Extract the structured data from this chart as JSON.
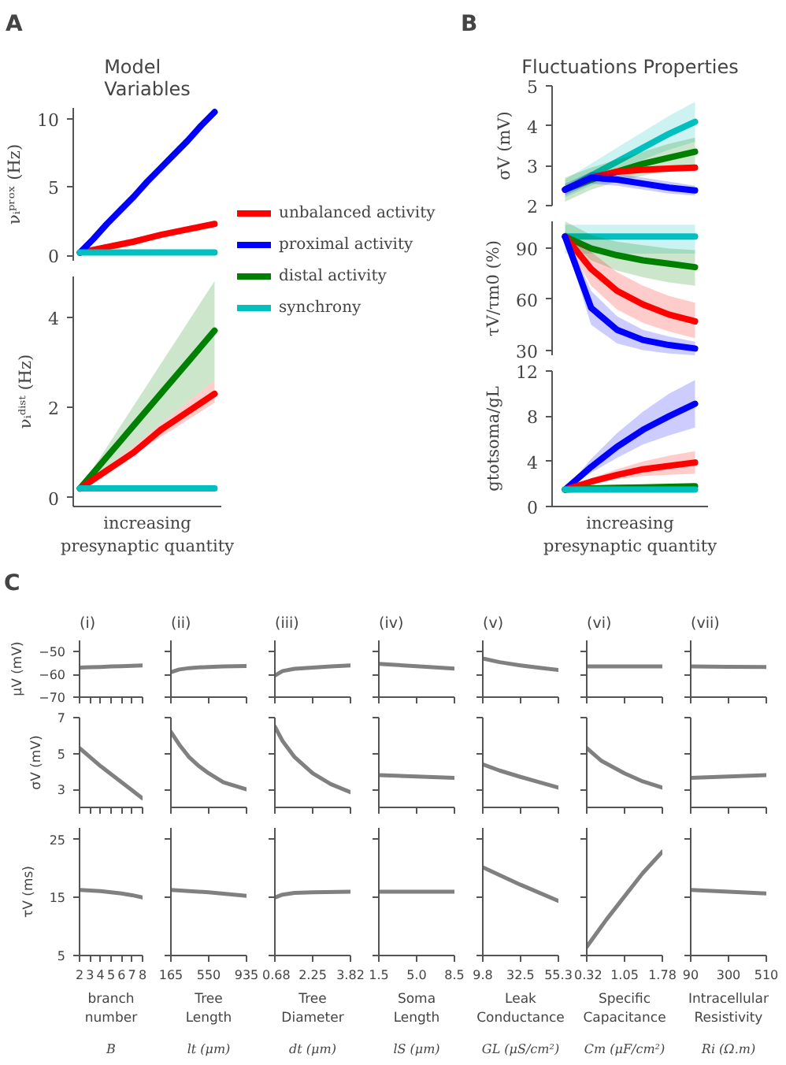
{
  "chart_data": [
    {
      "type": "line",
      "title": "Model Variables",
      "annotations": [
        "A"
      ],
      "ylabel": "νᵢᵖʳᵒˣ (Hz)",
      "categories": [
        null,
        null,
        null,
        null,
        null,
        null,
        null,
        null,
        null,
        null,
        null
      ],
      "ylim": [
        -0.4,
        10.8
      ],
      "yticks": [
        0,
        5,
        10
      ],
      "tick_labels": "y",
      "legend": "right",
      "series": [
        {
          "name": "unbalanced activity",
          "color": "#ff0000",
          "values": [
            0.2,
            0.4,
            0.6,
            0.8,
            1.0,
            1.25,
            1.5,
            1.7,
            1.9,
            2.1,
            2.3
          ]
        },
        {
          "name": "proximal activity",
          "color": "#0000ff",
          "values": [
            0.2,
            1.2,
            2.3,
            3.3,
            4.3,
            5.4,
            6.4,
            7.4,
            8.4,
            9.5,
            10.5
          ]
        },
        {
          "name": "distal activity",
          "color": "#008000",
          "values": [
            null,
            null,
            null,
            null,
            null,
            null,
            null,
            null,
            null,
            null,
            null
          ]
        },
        {
          "name": "synchrony",
          "color": "#00bfbf",
          "values": [
            0.2,
            0.2,
            0.2,
            0.2,
            0.2,
            0.2,
            0.2,
            0.2,
            0.2,
            0.2,
            0.2
          ]
        }
      ]
    },
    {
      "type": "line",
      "ylabel": "νᵢᵈⁱˢᵗ (Hz)",
      "xlabel": "increasing presynaptic quantity",
      "categories": [
        null,
        null,
        null,
        null,
        null,
        null,
        null,
        null,
        null,
        null,
        null
      ],
      "ylim": [
        -0.2,
        4.9
      ],
      "yticks": [
        0,
        2,
        4
      ],
      "tick_labels": "y",
      "series": [
        {
          "color": "#008000",
          "values": [
            0.2,
            0.55,
            0.9,
            1.25,
            1.6,
            1.95,
            2.3,
            2.65,
            3.0,
            3.35,
            3.7
          ],
          "lower": [
            0.2,
            0.44,
            0.68,
            0.92,
            1.16,
            1.4,
            1.64,
            1.88,
            2.12,
            2.36,
            2.6
          ],
          "upper": [
            0.2,
            0.66,
            1.12,
            1.58,
            2.04,
            2.5,
            2.96,
            3.42,
            3.88,
            4.34,
            4.8
          ]
        },
        {
          "color": "#ff0000",
          "values": [
            0.2,
            0.4,
            0.6,
            0.8,
            1.0,
            1.25,
            1.5,
            1.7,
            1.9,
            2.1,
            2.3
          ],
          "lower": [
            0.2,
            0.39,
            0.58,
            0.77,
            0.96,
            1.15,
            1.34,
            1.53,
            1.72,
            1.91,
            2.1
          ],
          "upper": [
            0.2,
            0.44,
            0.68,
            0.92,
            1.16,
            1.4,
            1.64,
            1.88,
            2.12,
            2.36,
            2.6
          ]
        },
        {
          "color": "#00bfbf",
          "values": [
            0.2,
            0.2,
            0.2,
            0.2,
            0.2,
            0.2,
            0.2,
            0.2,
            0.2,
            0.2,
            0.2
          ]
        }
      ]
    },
    {
      "type": "line",
      "title": "Fluctuations Properties",
      "annotations": [
        "B"
      ],
      "ylabel": "σV (mV)",
      "categories": [
        null,
        null,
        null,
        null,
        null,
        null
      ],
      "ylim": [
        2,
        5
      ],
      "yticks": [
        2,
        3,
        4,
        5
      ],
      "tick_labels": "y",
      "series": [
        {
          "color": "#00bfbf",
          "values": [
            2.4,
            2.75,
            3.1,
            3.45,
            3.8,
            4.1
          ],
          "lower": [
            2.2,
            2.5,
            2.85,
            3.15,
            3.4,
            3.6
          ],
          "upper": [
            2.65,
            3.05,
            3.45,
            3.85,
            4.25,
            4.6
          ]
        },
        {
          "color": "#008000",
          "values": [
            2.4,
            2.65,
            2.85,
            3.05,
            3.2,
            3.35
          ],
          "lower": [
            2.1,
            2.4,
            2.6,
            2.75,
            2.9,
            3.0
          ],
          "upper": [
            2.7,
            2.95,
            3.15,
            3.35,
            3.55,
            3.7
          ]
        },
        {
          "color": "#ff0000",
          "values": [
            2.4,
            2.7,
            2.85,
            2.9,
            2.93,
            2.95
          ],
          "lower": [
            2.3,
            2.62,
            2.77,
            2.82,
            2.85,
            2.87
          ],
          "upper": [
            2.5,
            2.78,
            2.93,
            2.98,
            3.01,
            3.03
          ]
        },
        {
          "color": "#0000ff",
          "values": [
            2.4,
            2.7,
            2.65,
            2.55,
            2.45,
            2.38
          ],
          "lower": [
            2.25,
            2.55,
            2.5,
            2.4,
            2.3,
            2.25
          ],
          "upper": [
            2.55,
            2.85,
            2.8,
            2.7,
            2.6,
            2.5
          ]
        }
      ]
    },
    {
      "type": "line",
      "ylabel": "τV/τm0 (%)",
      "categories": [
        null,
        null,
        null,
        null,
        null,
        null
      ],
      "ylim": [
        27,
        106
      ],
      "yticks": [
        30,
        60,
        90
      ],
      "tick_labels": "y",
      "series": [
        {
          "color": "#00bfbf",
          "values": [
            97,
            97,
            97,
            97,
            97,
            97
          ],
          "lower": [
            87,
            87,
            87,
            87,
            87,
            87
          ],
          "upper": [
            104,
            104,
            104,
            104,
            104,
            104
          ]
        },
        {
          "color": "#008000",
          "values": [
            97,
            90,
            86,
            83,
            81,
            79
          ],
          "lower": [
            97,
            83,
            77,
            73,
            70,
            68
          ],
          "upper": [
            106,
            98,
            94,
            92,
            90,
            89
          ]
        },
        {
          "color": "#ff0000",
          "values": [
            97,
            78,
            65,
            57,
            51,
            47
          ],
          "lower": [
            95,
            68,
            54,
            46,
            41,
            37
          ],
          "upper": [
            100,
            88,
            76,
            68,
            62,
            58
          ]
        },
        {
          "color": "#0000ff",
          "values": [
            97,
            55,
            42,
            36,
            33,
            31
          ],
          "lower": [
            95,
            45,
            34,
            30,
            28,
            27
          ],
          "upper": [
            100,
            65,
            50,
            42,
            38,
            35
          ]
        }
      ]
    },
    {
      "type": "line",
      "ylabel": "gtotsoma/gL",
      "xlabel": "increasing presynaptic quantity",
      "categories": [
        null,
        null,
        null,
        null,
        null,
        null
      ],
      "ylim": [
        0,
        12
      ],
      "yticks": [
        0,
        4,
        8,
        12
      ],
      "tick_labels": "y",
      "series": [
        {
          "color": "#0000ff",
          "values": [
            1.5,
            3.5,
            5.3,
            6.8,
            8.0,
            9.1
          ],
          "lower": [
            1.5,
            3.0,
            4.3,
            5.5,
            6.3,
            7.0
          ],
          "upper": [
            1.5,
            4.2,
            6.5,
            8.4,
            10.0,
            11.2
          ]
        },
        {
          "color": "#ff0000",
          "values": [
            1.5,
            2.2,
            2.8,
            3.3,
            3.6,
            3.9
          ],
          "lower": [
            1.5,
            2.0,
            2.4,
            2.7,
            2.8,
            2.9
          ],
          "upper": [
            1.5,
            2.5,
            3.3,
            4.0,
            4.5,
            4.9
          ]
        },
        {
          "color": "#008000",
          "values": [
            1.5,
            1.6,
            1.65,
            1.7,
            1.75,
            1.8
          ]
        },
        {
          "color": "#00bfbf",
          "values": [
            1.5,
            1.5,
            1.5,
            1.5,
            1.5,
            1.5
          ]
        }
      ]
    },
    {
      "type": "line",
      "title": "(i)",
      "annotations": [
        "C"
      ],
      "ylabel": "μV (mV)",
      "x": [
        2,
        3,
        4,
        5,
        6,
        7,
        8
      ],
      "xlim": [
        2,
        8
      ],
      "xticks": [
        2,
        3,
        4,
        5,
        6,
        7,
        8
      ],
      "ylim": [
        -70,
        -45
      ],
      "yticks": [
        -70,
        -60,
        -50
      ],
      "tick_labels": "y",
      "series": [
        {
          "color": "#808080",
          "values": [
            -57,
            -56.8,
            -56.7,
            -56.5,
            -56.4,
            -56.2,
            -56
          ]
        }
      ]
    },
    {
      "type": "line",
      "title": "(ii)",
      "x": [
        165,
        250,
        350,
        450,
        550,
        700,
        935
      ],
      "xlim": [
        165,
        935
      ],
      "xticks": [
        165,
        550,
        935
      ],
      "ylim": [
        -70,
        -45
      ],
      "yticks": [
        -70,
        -60,
        -50
      ],
      "tick_labels": false,
      "series": [
        {
          "color": "#808080",
          "values": [
            -59,
            -57.8,
            -57.2,
            -56.9,
            -56.7,
            -56.5,
            -56.3
          ]
        }
      ]
    },
    {
      "type": "line",
      "title": "(iii)",
      "x": [
        0.68,
        1.0,
        1.5,
        2.25,
        3.0,
        3.82
      ],
      "xlim": [
        0.68,
        3.82
      ],
      "xticks": [
        0.68,
        2.25,
        3.82
      ],
      "ylim": [
        -70,
        -45
      ],
      "yticks": [
        -70,
        -60,
        -50
      ],
      "tick_labels": false,
      "series": [
        {
          "color": "#808080",
          "values": [
            -60.5,
            -58.5,
            -57.5,
            -57,
            -56.5,
            -56
          ]
        }
      ]
    },
    {
      "type": "line",
      "title": "(iv)",
      "x": [
        1.5,
        5,
        8.5
      ],
      "xlim": [
        1.5,
        8.5
      ],
      "xticks": [
        1.5,
        5,
        8.5
      ],
      "ylim": [
        -70,
        -45
      ],
      "yticks": [
        -70,
        -60,
        -50
      ],
      "tick_labels": false,
      "series": [
        {
          "color": "#808080",
          "values": [
            -55.3,
            -56.4,
            -57.4
          ]
        }
      ]
    },
    {
      "type": "line",
      "title": "(v)",
      "x": [
        9.8,
        20,
        32.5,
        44,
        55.3
      ],
      "xlim": [
        9.8,
        55.3
      ],
      "xticks": [
        9.8,
        32.5,
        55.3
      ],
      "ylim": [
        -70,
        -45
      ],
      "yticks": [
        -70,
        -60,
        -50
      ],
      "tick_labels": false,
      "series": [
        {
          "color": "#808080",
          "values": [
            -53,
            -54.6,
            -56,
            -57.1,
            -58
          ]
        }
      ]
    },
    {
      "type": "line",
      "title": "(vi)",
      "x": [
        0.32,
        1.05,
        1.78
      ],
      "xlim": [
        0.32,
        1.78
      ],
      "xticks": [
        0.32,
        1.05,
        1.78
      ],
      "ylim": [
        -70,
        -45
      ],
      "yticks": [
        -70,
        -60,
        -50
      ],
      "tick_labels": false,
      "series": [
        {
          "color": "#808080",
          "values": [
            -56.5,
            -56.5,
            -56.5
          ]
        }
      ]
    },
    {
      "type": "line",
      "title": "(vii)",
      "x": [
        90,
        300,
        510
      ],
      "xlim": [
        90,
        510
      ],
      "xticks": [
        90,
        300,
        510
      ],
      "ylim": [
        -70,
        -45
      ],
      "yticks": [
        -70,
        -60,
        -50
      ],
      "tick_labels": false,
      "series": [
        {
          "color": "#808080",
          "values": [
            -56.5,
            -56.6,
            -56.7
          ]
        }
      ]
    },
    {
      "type": "line",
      "ylabel": "σV (mV)",
      "x": [
        2,
        3,
        4,
        5,
        6,
        7,
        8
      ],
      "xlim": [
        2,
        8
      ],
      "xticks": [
        2,
        3,
        4,
        5,
        6,
        7,
        8
      ],
      "ylim": [
        2,
        7
      ],
      "yticks": [
        3,
        5,
        7
      ],
      "tick_labels": "y",
      "series": [
        {
          "color": "#808080",
          "values": [
            5.3,
            4.8,
            4.3,
            3.85,
            3.4,
            2.95,
            2.5
          ]
        }
      ]
    },
    {
      "type": "line",
      "x": [
        165,
        250,
        350,
        450,
        550,
        700,
        935
      ],
      "xlim": [
        165,
        935
      ],
      "xticks": [
        165,
        550,
        935
      ],
      "ylim": [
        2,
        7
      ],
      "yticks": [
        3,
        5,
        7
      ],
      "tick_labels": false,
      "series": [
        {
          "color": "#808080",
          "values": [
            6.2,
            5.5,
            4.8,
            4.3,
            3.9,
            3.4,
            3.0
          ]
        }
      ]
    },
    {
      "type": "line",
      "x": [
        0.68,
        1.0,
        1.5,
        2.25,
        3.0,
        3.82
      ],
      "xlim": [
        0.68,
        3.82
      ],
      "xticks": [
        0.68,
        2.25,
        3.82
      ],
      "ylim": [
        2,
        7
      ],
      "yticks": [
        3,
        5,
        7
      ],
      "tick_labels": false,
      "series": [
        {
          "color": "#808080",
          "values": [
            6.5,
            5.7,
            4.8,
            3.9,
            3.3,
            2.85
          ]
        }
      ]
    },
    {
      "type": "line",
      "x": [
        1.5,
        5,
        8.5
      ],
      "xlim": [
        1.5,
        8.5
      ],
      "xticks": [
        1.5,
        5,
        8.5
      ],
      "ylim": [
        2,
        7
      ],
      "yticks": [
        3,
        5,
        7
      ],
      "tick_labels": false,
      "series": [
        {
          "color": "#808080",
          "values": [
            3.8,
            3.72,
            3.65
          ]
        }
      ]
    },
    {
      "type": "line",
      "x": [
        9.8,
        20,
        32.5,
        44,
        55.3
      ],
      "xlim": [
        9.8,
        55.3
      ],
      "xticks": [
        9.8,
        32.5,
        55.3
      ],
      "ylim": [
        2,
        7
      ],
      "yticks": [
        3,
        5,
        7
      ],
      "tick_labels": false,
      "series": [
        {
          "color": "#808080",
          "values": [
            4.4,
            4.05,
            3.7,
            3.4,
            3.1
          ]
        }
      ]
    },
    {
      "type": "line",
      "x": [
        0.32,
        0.6,
        1.05,
        1.4,
        1.78
      ],
      "xlim": [
        0.32,
        1.78
      ],
      "xticks": [
        0.32,
        1.05,
        1.78
      ],
      "ylim": [
        2,
        7
      ],
      "yticks": [
        3,
        5,
        7
      ],
      "tick_labels": false,
      "series": [
        {
          "color": "#808080",
          "values": [
            5.3,
            4.6,
            3.9,
            3.45,
            3.1
          ]
        }
      ]
    },
    {
      "type": "line",
      "x": [
        90,
        300,
        510
      ],
      "xlim": [
        90,
        510
      ],
      "xticks": [
        90,
        300,
        510
      ],
      "ylim": [
        2,
        7
      ],
      "yticks": [
        3,
        5,
        7
      ],
      "tick_labels": false,
      "series": [
        {
          "color": "#808080",
          "values": [
            3.65,
            3.72,
            3.8
          ]
        }
      ]
    },
    {
      "type": "line",
      "ylabel": "τV (ms)",
      "xlabel": "branch number",
      "annotations": [
        "B"
      ],
      "x": [
        2,
        3,
        4,
        5,
        6,
        7,
        8
      ],
      "xlim": [
        2,
        8
      ],
      "xticks": [
        2,
        3,
        4,
        5,
        6,
        7,
        8
      ],
      "ylim": [
        5,
        27
      ],
      "yticks": [
        5,
        15,
        25
      ],
      "series": [
        {
          "color": "#808080",
          "values": [
            16.3,
            16.2,
            16.1,
            15.9,
            15.7,
            15.4,
            15.0
          ]
        }
      ]
    },
    {
      "type": "line",
      "xlabel": "Tree Length",
      "annotations": [
        "lt (μm)"
      ],
      "x": [
        165,
        550,
        935
      ],
      "xlim": [
        165,
        935
      ],
      "xticks": [
        165,
        550,
        935
      ],
      "ylim": [
        5,
        27
      ],
      "yticks": [
        5,
        15,
        25
      ],
      "tick_labels": "x",
      "series": [
        {
          "color": "#808080",
          "values": [
            16.3,
            15.9,
            15.3
          ]
        }
      ]
    },
    {
      "type": "line",
      "xlabel": "Tree Diameter",
      "annotations": [
        "dt (μm)"
      ],
      "x": [
        0.68,
        1.0,
        1.5,
        2.25,
        3.82
      ],
      "xlim": [
        0.68,
        3.82
      ],
      "xticks": [
        0.68,
        2.25,
        3.82
      ],
      "ylim": [
        5,
        27
      ],
      "yticks": [
        5,
        15,
        25
      ],
      "tick_labels": "x",
      "series": [
        {
          "color": "#808080",
          "values": [
            15.0,
            15.5,
            15.8,
            15.9,
            16.0
          ]
        }
      ]
    },
    {
      "type": "line",
      "xlabel": "Soma Length",
      "annotations": [
        "lS (μm)"
      ],
      "x": [
        1.5,
        5,
        8.5
      ],
      "xlim": [
        1.5,
        8.5
      ],
      "xticks": [
        1.5,
        {
          "value": 5,
          "label": "5.0"
        },
        8.5
      ],
      "ylim": [
        5,
        27
      ],
      "yticks": [
        5,
        15,
        25
      ],
      "tick_labels": "x",
      "series": [
        {
          "color": "#808080",
          "values": [
            16.0,
            16.0,
            16.0
          ]
        }
      ]
    },
    {
      "type": "line",
      "xlabel": "Leak Conductance",
      "annotations": [
        "GL (μS/cm²)"
      ],
      "x": [
        9.8,
        32.5,
        55.3
      ],
      "xlim": [
        9.8,
        55.3
      ],
      "xticks": [
        9.8,
        32.5,
        55.3
      ],
      "ylim": [
        5,
        27
      ],
      "yticks": [
        5,
        15,
        25
      ],
      "tick_labels": "x",
      "series": [
        {
          "color": "#808080",
          "values": [
            20.2,
            17.2,
            14.4
          ]
        }
      ]
    },
    {
      "type": "line",
      "xlabel": "Specific Capacitance",
      "annotations": [
        "Cm (μF/cm²)"
      ],
      "x": [
        0.32,
        0.7,
        1.05,
        1.4,
        1.78
      ],
      "xlim": [
        0.32,
        1.78
      ],
      "xticks": [
        0.32,
        1.05,
        1.78
      ],
      "ylim": [
        5,
        27
      ],
      "yticks": [
        5,
        15,
        25
      ],
      "tick_labels": "x",
      "series": [
        {
          "color": "#808080",
          "values": [
            6.5,
            11.2,
            15.2,
            19.2,
            22.9
          ]
        }
      ]
    },
    {
      "type": "line",
      "xlabel": "Intracellular Resistivity",
      "annotations": [
        "Ri (Ω.m)"
      ],
      "x": [
        90,
        300,
        510
      ],
      "xlim": [
        90,
        510
      ],
      "xticks": [
        90,
        300,
        510
      ],
      "ylim": [
        5,
        27
      ],
      "yticks": [
        5,
        15,
        25
      ],
      "tick_labels": "x",
      "series": [
        {
          "color": "#808080",
          "values": [
            16.3,
            16.0,
            15.7
          ]
        }
      ]
    }
  ]
}
